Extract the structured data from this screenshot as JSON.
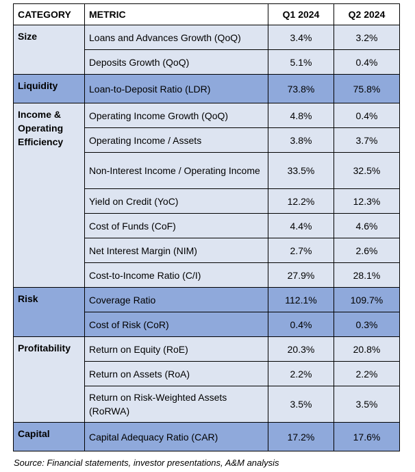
{
  "headers": {
    "category": "CATEGORY",
    "metric": "METRIC",
    "q1": "Q1 2024",
    "q2": "Q2 2024"
  },
  "categories": {
    "size": "Size",
    "liquidity": "Liquidity",
    "income_line1": "Income &",
    "income_line2": "Operating",
    "income_line3": "Efficiency",
    "risk": "Risk",
    "profitability": "Profitability",
    "capital": "Capital"
  },
  "rows": [
    {
      "metric": "Loans and Advances Growth (QoQ)",
      "q1": "3.4%",
      "q2": "3.2%"
    },
    {
      "metric": "Deposits Growth (QoQ)",
      "q1": "5.1%",
      "q2": "0.4%"
    },
    {
      "metric": "Loan-to-Deposit Ratio (LDR)",
      "q1": "73.8%",
      "q2": "75.8%"
    },
    {
      "metric": "Operating Income Growth (QoQ)",
      "q1": "4.8%",
      "q2": "0.4%"
    },
    {
      "metric": "Operating Income / Assets",
      "q1": "3.8%",
      "q2": "3.7%"
    },
    {
      "metric": "Non-Interest Income / Operating Income",
      "q1": "33.5%",
      "q2": "32.5%"
    },
    {
      "metric": "Yield on Credit (YoC)",
      "q1": "12.2%",
      "q2": "12.3%"
    },
    {
      "metric": "Cost of Funds (CoF)",
      "q1": "4.4%",
      "q2": "4.6%"
    },
    {
      "metric": "Net Interest Margin (NIM)",
      "q1": "2.7%",
      "q2": "2.6%"
    },
    {
      "metric": "Cost-to-Income Ratio (C/I)",
      "q1": "27.9%",
      "q2": "28.1%"
    },
    {
      "metric": "Coverage Ratio",
      "q1": "112.1%",
      "q2": "109.7%"
    },
    {
      "metric": "Cost of Risk (CoR)",
      "q1": "0.4%",
      "q2": "0.3%"
    },
    {
      "metric": "Return on Equity (RoE)",
      "q1": "20.3%",
      "q2": "20.8%"
    },
    {
      "metric": "Return on Assets (RoA)",
      "q1": "2.2%",
      "q2": "2.2%"
    },
    {
      "metric": "Return on Risk-Weighted Assets (RoRWA)",
      "q1": "3.5%",
      "q2": "3.5%"
    },
    {
      "metric": "Capital Adequacy Ratio (CAR)",
      "q1": "17.2%",
      "q2": "17.6%"
    }
  ],
  "source": "Source: Financial statements, investor presentations, A&M analysis",
  "colors": {
    "light_fill": "#dde4f1",
    "dark_fill": "#8fa9db",
    "header_fill": "#ffffff"
  }
}
